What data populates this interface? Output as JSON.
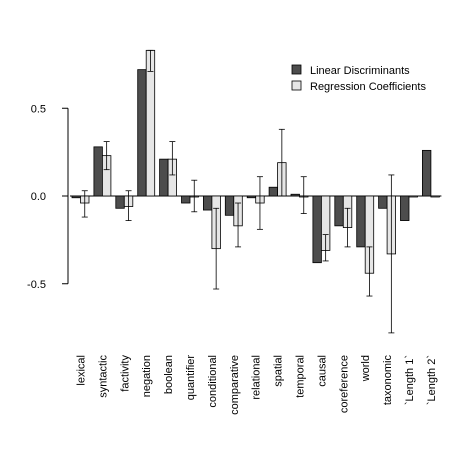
{
  "chart_data": {
    "type": "bar",
    "categories": [
      "lexical",
      "syntactic",
      "factivity",
      "negation",
      "boolean",
      "quantifier",
      "conditional",
      "comparative",
      "relational",
      "spatial",
      "temporal",
      "causal",
      "coreference",
      "world",
      "taxonomic",
      "`Length 1`",
      "`Length 2`"
    ],
    "series": [
      {
        "name": "Linear Discriminants",
        "color": "#4d4d4d",
        "values": [
          -0.01,
          0.28,
          -0.07,
          0.72,
          0.21,
          -0.04,
          -0.08,
          -0.11,
          -0.01,
          0.05,
          0.01,
          -0.38,
          -0.17,
          -0.29,
          -0.07,
          -0.14,
          0.26
        ]
      },
      {
        "name": "Regression Coefficients",
        "color": "#e6e6e6",
        "values": [
          -0.04,
          0.23,
          -0.06,
          0.83,
          0.21,
          0.0,
          -0.3,
          -0.17,
          -0.04,
          0.19,
          0.0,
          -0.31,
          -0.18,
          -0.44,
          -0.33,
          0.0,
          0.0
        ],
        "error_low": [
          -0.12,
          0.15,
          -0.14,
          0.71,
          0.12,
          -0.09,
          -0.53,
          -0.29,
          -0.19,
          0.0,
          -0.1,
          -0.37,
          -0.29,
          -0.57,
          -0.78,
          0.0,
          0.0
        ],
        "error_high": [
          0.03,
          0.31,
          0.03,
          0.83,
          0.31,
          0.09,
          -0.07,
          -0.04,
          0.11,
          0.38,
          0.11,
          -0.22,
          -0.07,
          -0.29,
          0.12,
          0.0,
          0.0
        ]
      }
    ],
    "yticks": [
      "-0.5",
      "0.0",
      "0.5"
    ],
    "ylim": [
      -0.86,
      0.86
    ],
    "legend_position": "top-right",
    "grid": false
  }
}
